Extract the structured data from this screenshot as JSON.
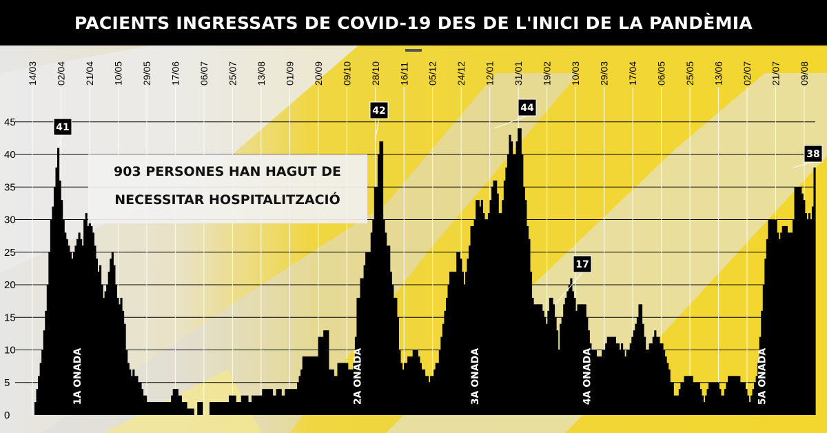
{
  "chart_data": {
    "type": "bar",
    "title": "PACIENTS INGRESSATS DE COVID-19 DES DE L'INICI DE LA PANDÈMIA",
    "xlabel": "",
    "ylabel": "",
    "ylim": [
      0,
      48
    ],
    "yticks": [
      0,
      5,
      10,
      15,
      20,
      25,
      30,
      35,
      40,
      45
    ],
    "grid": true,
    "x_ticks": [
      "14/03",
      "02/04",
      "21/04",
      "10/05",
      "29/05",
      "17/06",
      "06/07",
      "25/07",
      "13/08",
      "01/09",
      "20/09",
      "09/10",
      "28/10",
      "16/11",
      "05/12",
      "24/12",
      "12/01",
      "31/01",
      "19/02",
      "10/03",
      "29/03",
      "17/04",
      "06/05",
      "25/05",
      "13/06",
      "02/07",
      "21/07",
      "09/08"
    ],
    "values": [
      2,
      4,
      6,
      8,
      10,
      13,
      16,
      20,
      25,
      30,
      32,
      35,
      38,
      41,
      36,
      33,
      30,
      28,
      27,
      26,
      25,
      24,
      25,
      26,
      27,
      28,
      27,
      26,
      30,
      31,
      29,
      30,
      29,
      28,
      26,
      24,
      22,
      23,
      20,
      18,
      19,
      20,
      22,
      24,
      25,
      23,
      20,
      18,
      17,
      18,
      16,
      14,
      10,
      8,
      7,
      6,
      7,
      6,
      6,
      5,
      5,
      4,
      3,
      3,
      2,
      2,
      2,
      2,
      2,
      2,
      2,
      2,
      2,
      2,
      2,
      2,
      2,
      2,
      3,
      4,
      4,
      4,
      3,
      3,
      2,
      2,
      2,
      1,
      1,
      1,
      1,
      0,
      0,
      2,
      2,
      2,
      0,
      0,
      0,
      0,
      2,
      2,
      2,
      2,
      2,
      2,
      2,
      2,
      2,
      2,
      2,
      3,
      3,
      3,
      3,
      2,
      2,
      2,
      3,
      3,
      3,
      3,
      2,
      2,
      3,
      3,
      3,
      3,
      3,
      3,
      4,
      4,
      4,
      4,
      4,
      4,
      3,
      3,
      4,
      4,
      4,
      3,
      3,
      4,
      4,
      4,
      4,
      4,
      4,
      4,
      5,
      6,
      7,
      9,
      9,
      9,
      9,
      9,
      9,
      9,
      9,
      9,
      12,
      12,
      12,
      13,
      13,
      13,
      7,
      7,
      7,
      6,
      6,
      8,
      8,
      8,
      8,
      8,
      8,
      7,
      7,
      7,
      8,
      12,
      18,
      18,
      21,
      21,
      23,
      25,
      25,
      25,
      28,
      30,
      35,
      35,
      40,
      42,
      42,
      30,
      28,
      26,
      26,
      22,
      20,
      18,
      18,
      15,
      10,
      8,
      7,
      8,
      8,
      9,
      9,
      9,
      10,
      10,
      10,
      9,
      8,
      7,
      7,
      6,
      6,
      5,
      6,
      6,
      7,
      8,
      8,
      10,
      12,
      14,
      16,
      18,
      20,
      22,
      22,
      22,
      22,
      25,
      25,
      24,
      22,
      20,
      22,
      24,
      26,
      29,
      29,
      30,
      33,
      33,
      32,
      33,
      31,
      30,
      30,
      31,
      33,
      35,
      36,
      36,
      34,
      31,
      31,
      33,
      36,
      38,
      40,
      43,
      42,
      40,
      40,
      42,
      44,
      44,
      40,
      35,
      33,
      29,
      27,
      22,
      18,
      17,
      17,
      17,
      17,
      17,
      16,
      15,
      14,
      16,
      18,
      18,
      17,
      15,
      13,
      10,
      14,
      15,
      17,
      18,
      19,
      20,
      21,
      19,
      18,
      16,
      17,
      17,
      17,
      17,
      17,
      15,
      13,
      11,
      10,
      10,
      10,
      9,
      9,
      9,
      10,
      10,
      11,
      12,
      12,
      12,
      12,
      12,
      11,
      11,
      10,
      11,
      10,
      9,
      10,
      10,
      11,
      12,
      13,
      14,
      15,
      17,
      17,
      14,
      12,
      10,
      10,
      11,
      11,
      12,
      13,
      12,
      12,
      11,
      11,
      10,
      9,
      8,
      7,
      5,
      5,
      3,
      3,
      3,
      4,
      5,
      5,
      6,
      6,
      6,
      6,
      6,
      5,
      5,
      5,
      5,
      4,
      3,
      2,
      3,
      4,
      5,
      5,
      5,
      5,
      5,
      5,
      4,
      3,
      3,
      4,
      5,
      6,
      6,
      6,
      6,
      6,
      6,
      6,
      5,
      5,
      5,
      4,
      3,
      2,
      3,
      4,
      5,
      6,
      8,
      12,
      16,
      20,
      24,
      27,
      30,
      30,
      30,
      30,
      30,
      28,
      27,
      28,
      29,
      29,
      29,
      28,
      28,
      28,
      30,
      35,
      35,
      35,
      35,
      34,
      33,
      31,
      30,
      31,
      30,
      32,
      38
    ],
    "peaks": [
      {
        "label": "41",
        "value": 41
      },
      {
        "label": "42",
        "value": 42
      },
      {
        "label": "44",
        "value": 44
      },
      {
        "label": "17",
        "value": 17
      },
      {
        "label": "38",
        "value": 38
      }
    ],
    "waves": [
      "1A ONADA",
      "2A ONADA",
      "3A ONADA",
      "4A ONADA",
      "5A ONADA"
    ],
    "annotation": [
      "903 PERSONES HAN HAGUT DE",
      "NECESSITAR HOSPITALITZACIÓ"
    ],
    "colors": {
      "bars": "#000000",
      "background": "#f2d43a",
      "grid": "#000000",
      "title_bg": "#000000",
      "title_text": "#ffffff"
    }
  }
}
